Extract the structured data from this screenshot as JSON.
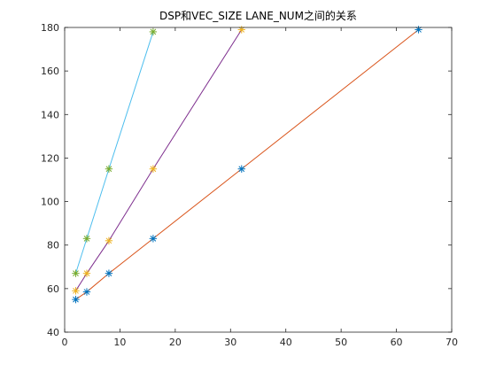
{
  "chart_data": {
    "type": "line",
    "title": "DSP和VEC_SIZE LANE_NUM之间的关系",
    "xlabel": "",
    "ylabel": "",
    "xlim": [
      0,
      70
    ],
    "ylim": [
      40,
      180
    ],
    "xticks": [
      0,
      10,
      20,
      30,
      40,
      50,
      60,
      70
    ],
    "yticks": [
      40,
      60,
      80,
      100,
      120,
      140,
      160,
      180
    ],
    "grid": false,
    "legend": "none",
    "series": [
      {
        "color": "#D95319",
        "marker_color": "#0072BD",
        "x": [
          2,
          4,
          8,
          16,
          32,
          64
        ],
        "y": [
          55,
          58.5,
          67,
          83,
          115,
          179
        ]
      },
      {
        "color": "#7E2F8E",
        "marker_color": "#EDB120",
        "x": [
          2,
          4,
          8,
          16,
          32
        ],
        "y": [
          59,
          67,
          82,
          115,
          179
        ]
      },
      {
        "color": "#4DBEEE",
        "marker_color": "#77AC30",
        "x": [
          2,
          4,
          8,
          16
        ],
        "y": [
          67,
          83,
          115,
          178
        ]
      }
    ]
  }
}
